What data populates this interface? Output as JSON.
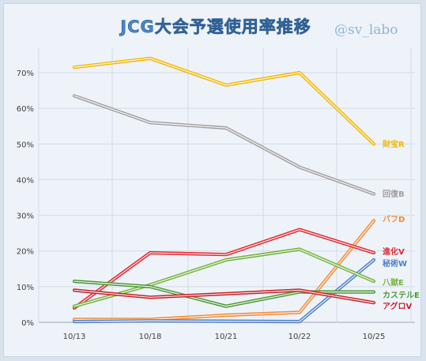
{
  "chart_data": {
    "type": "line",
    "title": "JCG大会予選使用率推移",
    "watermark": "@sv_labo",
    "categories": [
      "10/13",
      "10/18",
      "10/21",
      "10/22",
      "10/25"
    ],
    "ylim": [
      0,
      70
    ],
    "yticks": [
      0,
      10,
      20,
      30,
      40,
      50,
      60,
      70
    ],
    "ytick_labels": [
      "0%",
      "10%",
      "20%",
      "30%",
      "40%",
      "50%",
      "60%",
      "70%"
    ],
    "grid": true,
    "legend": "inline-right",
    "series": [
      {
        "name": "財宝R",
        "color": "#f2b705",
        "values": [
          71.5,
          74,
          66.5,
          70,
          50
        ]
      },
      {
        "name": "回復B",
        "color": "#a0a0a0",
        "values": [
          63.5,
          56,
          54.5,
          43.5,
          36
        ]
      },
      {
        "name": "バフD",
        "color": "#f08b3a",
        "values": [
          0.8,
          0.8,
          2,
          2.8,
          28.5
        ]
      },
      {
        "name": "進化V",
        "color": "#e02a32",
        "values": [
          4,
          19.5,
          19,
          26,
          19.5
        ]
      },
      {
        "name": "秘術W",
        "color": "#4f7fc8",
        "values": [
          0.2,
          0.4,
          0.3,
          0.2,
          17.5
        ]
      },
      {
        "name": "八獄E",
        "color": "#73b33c",
        "values": [
          4.5,
          10.5,
          17.5,
          20.5,
          11.5
        ]
      },
      {
        "name": "カステルE",
        "color": "#4c9a34",
        "values": [
          11.5,
          10,
          4.5,
          8.5,
          8.5
        ]
      },
      {
        "name": "アグロV",
        "color": "#c8242c",
        "values": [
          9,
          7,
          8,
          9,
          5.5
        ]
      }
    ]
  }
}
